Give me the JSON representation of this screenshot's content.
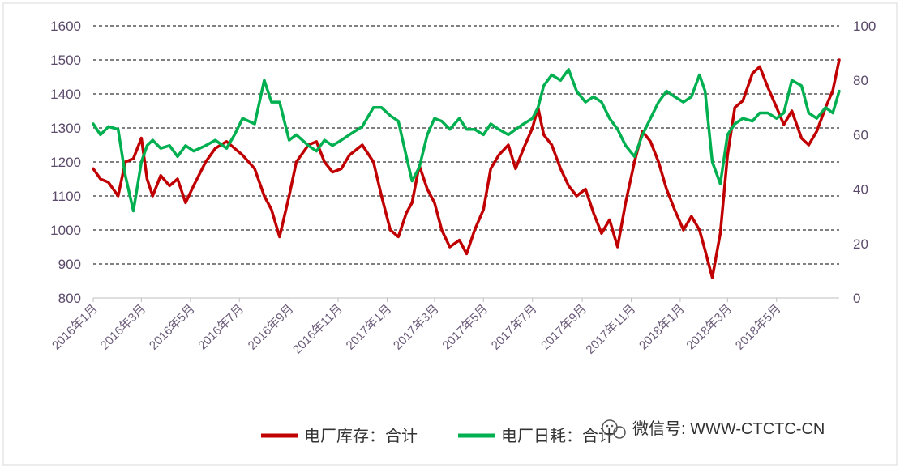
{
  "chart_data": {
    "type": "line",
    "title": "",
    "xlabel": "",
    "ylabel": "",
    "x_ticks": [
      "2016年1月",
      "2016年3月",
      "2016年5月",
      "2016年7月",
      "2016年9月",
      "2016年11月",
      "2017年1月",
      "2017年3月",
      "2017年5月",
      "2017年7月",
      "2017年9月",
      "2017年11月",
      "2018年1月",
      "2018年3月",
      "2018年5月"
    ],
    "ylim_left": [
      800,
      1600
    ],
    "yticks_left": [
      "800",
      "900",
      "1000",
      "1100",
      "1200",
      "1300",
      "1400",
      "1500",
      "1600"
    ],
    "ylim_right": [
      0,
      100
    ],
    "yticks_right": [
      "0",
      "20",
      "40",
      "60",
      "80",
      "100"
    ],
    "grid": true,
    "legend_position": "bottom-right",
    "series": [
      {
        "name": "电厂库存：合计",
        "axis": "left",
        "color": "#c00000",
        "points": [
          [
            "2016-01-01",
            1180
          ],
          [
            "2016-01-10",
            1150
          ],
          [
            "2016-01-20",
            1140
          ],
          [
            "2016-02-01",
            1100
          ],
          [
            "2016-02-10",
            1200
          ],
          [
            "2016-02-20",
            1210
          ],
          [
            "2016-03-01",
            1270
          ],
          [
            "2016-03-08",
            1150
          ],
          [
            "2016-03-15",
            1100
          ],
          [
            "2016-03-25",
            1160
          ],
          [
            "2016-04-05",
            1130
          ],
          [
            "2016-04-15",
            1150
          ],
          [
            "2016-04-25",
            1080
          ],
          [
            "2016-05-05",
            1130
          ],
          [
            "2016-05-20",
            1200
          ],
          [
            "2016-06-01",
            1240
          ],
          [
            "2016-06-15",
            1260
          ],
          [
            "2016-06-25",
            1240
          ],
          [
            "2016-07-05",
            1220
          ],
          [
            "2016-07-20",
            1180
          ],
          [
            "2016-08-01",
            1100
          ],
          [
            "2016-08-10",
            1060
          ],
          [
            "2016-08-20",
            980
          ],
          [
            "2016-09-01",
            1100
          ],
          [
            "2016-09-10",
            1200
          ],
          [
            "2016-09-25",
            1250
          ],
          [
            "2016-10-05",
            1260
          ],
          [
            "2016-10-15",
            1200
          ],
          [
            "2016-10-25",
            1170
          ],
          [
            "2016-11-05",
            1180
          ],
          [
            "2016-11-15",
            1220
          ],
          [
            "2016-12-01",
            1250
          ],
          [
            "2016-12-15",
            1200
          ],
          [
            "2016-12-25",
            1100
          ],
          [
            "2017-01-05",
            1000
          ],
          [
            "2017-01-15",
            980
          ],
          [
            "2017-01-25",
            1050
          ],
          [
            "2017-02-01",
            1080
          ],
          [
            "2017-02-10",
            1190
          ],
          [
            "2017-02-20",
            1120
          ],
          [
            "2017-03-01",
            1080
          ],
          [
            "2017-03-10",
            1000
          ],
          [
            "2017-03-20",
            950
          ],
          [
            "2017-04-01",
            970
          ],
          [
            "2017-04-10",
            930
          ],
          [
            "2017-04-20",
            1000
          ],
          [
            "2017-05-01",
            1060
          ],
          [
            "2017-05-10",
            1180
          ],
          [
            "2017-05-20",
            1220
          ],
          [
            "2017-06-01",
            1250
          ],
          [
            "2017-06-10",
            1180
          ],
          [
            "2017-06-20",
            1240
          ],
          [
            "2017-07-01",
            1300
          ],
          [
            "2017-07-08",
            1360
          ],
          [
            "2017-07-15",
            1280
          ],
          [
            "2017-07-25",
            1250
          ],
          [
            "2017-08-05",
            1180
          ],
          [
            "2017-08-15",
            1130
          ],
          [
            "2017-08-25",
            1100
          ],
          [
            "2017-09-05",
            1120
          ],
          [
            "2017-09-15",
            1050
          ],
          [
            "2017-09-25",
            990
          ],
          [
            "2017-10-05",
            1030
          ],
          [
            "2017-10-15",
            950
          ],
          [
            "2017-10-25",
            1080
          ],
          [
            "2017-11-05",
            1200
          ],
          [
            "2017-11-15",
            1290
          ],
          [
            "2017-11-25",
            1260
          ],
          [
            "2017-12-05",
            1200
          ],
          [
            "2017-12-15",
            1120
          ],
          [
            "2017-12-25",
            1060
          ],
          [
            "2018-01-05",
            1000
          ],
          [
            "2018-01-15",
            1040
          ],
          [
            "2018-01-25",
            1000
          ],
          [
            "2018-02-01",
            940
          ],
          [
            "2018-02-10",
            860
          ],
          [
            "2018-02-20",
            990
          ],
          [
            "2018-03-01",
            1220
          ],
          [
            "2018-03-10",
            1360
          ],
          [
            "2018-03-20",
            1380
          ],
          [
            "2018-04-01",
            1460
          ],
          [
            "2018-04-10",
            1480
          ],
          [
            "2018-04-20",
            1420
          ],
          [
            "2018-05-01",
            1360
          ],
          [
            "2018-05-10",
            1310
          ],
          [
            "2018-05-20",
            1350
          ],
          [
            "2018-06-01",
            1270
          ],
          [
            "2018-06-10",
            1250
          ],
          [
            "2018-06-20",
            1290
          ],
          [
            "2018-07-01",
            1360
          ],
          [
            "2018-07-10",
            1410
          ],
          [
            "2018-07-18",
            1500
          ]
        ]
      },
      {
        "name": "电厂日耗：合计",
        "axis": "right",
        "color": "#00b050",
        "points": [
          [
            "2016-01-01",
            64
          ],
          [
            "2016-01-10",
            60
          ],
          [
            "2016-01-20",
            63
          ],
          [
            "2016-02-01",
            62
          ],
          [
            "2016-02-10",
            45
          ],
          [
            "2016-02-20",
            32
          ],
          [
            "2016-03-01",
            50
          ],
          [
            "2016-03-08",
            56
          ],
          [
            "2016-03-15",
            58
          ],
          [
            "2016-03-25",
            55
          ],
          [
            "2016-04-05",
            56
          ],
          [
            "2016-04-15",
            52
          ],
          [
            "2016-04-25",
            56
          ],
          [
            "2016-05-05",
            54
          ],
          [
            "2016-05-20",
            56
          ],
          [
            "2016-06-01",
            58
          ],
          [
            "2016-06-15",
            55
          ],
          [
            "2016-06-25",
            60
          ],
          [
            "2016-07-05",
            66
          ],
          [
            "2016-07-20",
            64
          ],
          [
            "2016-08-01",
            80
          ],
          [
            "2016-08-10",
            72
          ],
          [
            "2016-08-20",
            72
          ],
          [
            "2016-09-01",
            58
          ],
          [
            "2016-09-10",
            60
          ],
          [
            "2016-09-25",
            56
          ],
          [
            "2016-10-05",
            54
          ],
          [
            "2016-10-15",
            58
          ],
          [
            "2016-10-25",
            56
          ],
          [
            "2016-11-05",
            58
          ],
          [
            "2016-11-15",
            60
          ],
          [
            "2016-12-01",
            63
          ],
          [
            "2016-12-15",
            70
          ],
          [
            "2016-12-25",
            70
          ],
          [
            "2017-01-05",
            67
          ],
          [
            "2017-01-15",
            65
          ],
          [
            "2017-01-25",
            52
          ],
          [
            "2017-02-01",
            43
          ],
          [
            "2017-02-10",
            48
          ],
          [
            "2017-02-20",
            60
          ],
          [
            "2017-03-01",
            66
          ],
          [
            "2017-03-10",
            65
          ],
          [
            "2017-03-20",
            62
          ],
          [
            "2017-04-01",
            66
          ],
          [
            "2017-04-10",
            62
          ],
          [
            "2017-04-20",
            62
          ],
          [
            "2017-05-01",
            60
          ],
          [
            "2017-05-10",
            64
          ],
          [
            "2017-05-20",
            62
          ],
          [
            "2017-06-01",
            60
          ],
          [
            "2017-06-10",
            62
          ],
          [
            "2017-06-20",
            64
          ],
          [
            "2017-07-01",
            66
          ],
          [
            "2017-07-08",
            70
          ],
          [
            "2017-07-15",
            78
          ],
          [
            "2017-07-25",
            82
          ],
          [
            "2017-08-05",
            80
          ],
          [
            "2017-08-15",
            84
          ],
          [
            "2017-08-25",
            76
          ],
          [
            "2017-09-05",
            72
          ],
          [
            "2017-09-15",
            74
          ],
          [
            "2017-09-25",
            72
          ],
          [
            "2017-10-05",
            66
          ],
          [
            "2017-10-15",
            62
          ],
          [
            "2017-10-25",
            56
          ],
          [
            "2017-11-05",
            52
          ],
          [
            "2017-11-15",
            60
          ],
          [
            "2017-11-25",
            66
          ],
          [
            "2017-12-05",
            72
          ],
          [
            "2017-12-15",
            76
          ],
          [
            "2017-12-25",
            74
          ],
          [
            "2018-01-05",
            72
          ],
          [
            "2018-01-15",
            74
          ],
          [
            "2018-01-25",
            82
          ],
          [
            "2018-02-01",
            76
          ],
          [
            "2018-02-10",
            50
          ],
          [
            "2018-02-20",
            42
          ],
          [
            "2018-03-01",
            60
          ],
          [
            "2018-03-10",
            64
          ],
          [
            "2018-03-20",
            66
          ],
          [
            "2018-04-01",
            65
          ],
          [
            "2018-04-10",
            68
          ],
          [
            "2018-04-20",
            68
          ],
          [
            "2018-05-01",
            66
          ],
          [
            "2018-05-10",
            68
          ],
          [
            "2018-05-20",
            80
          ],
          [
            "2018-06-01",
            78
          ],
          [
            "2018-06-10",
            68
          ],
          [
            "2018-06-20",
            66
          ],
          [
            "2018-07-01",
            70
          ],
          [
            "2018-07-10",
            68
          ],
          [
            "2018-07-18",
            76
          ]
        ]
      }
    ]
  },
  "watermark": {
    "icon": "wechat-icon",
    "text": "微信号: WWW-CTCTC-CN"
  }
}
